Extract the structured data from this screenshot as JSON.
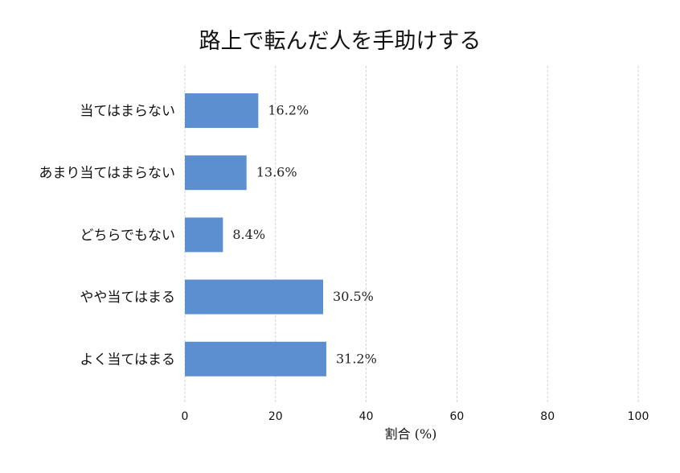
{
  "chart_data": {
    "type": "bar",
    "orientation": "horizontal",
    "title": "路上で転んだ人を手助けする",
    "xlabel": "割合 (%)",
    "ylabel": "",
    "categories": [
      "当てはまらない",
      "あまり当てはまらない",
      "どちらでもない",
      "やや当てはまる",
      "よく当てはまる"
    ],
    "values": [
      16.2,
      13.6,
      8.4,
      30.5,
      31.2
    ],
    "value_labels": [
      "16.2%",
      "13.6%",
      "8.4%",
      "30.5%",
      "31.2%"
    ],
    "xlim": [
      0,
      100
    ],
    "xticks": [
      0,
      20,
      40,
      60,
      80,
      100
    ],
    "xtick_labels": [
      "0",
      "20",
      "40",
      "60",
      "80",
      "100"
    ],
    "grid": "x-dashed",
    "bar_color": "#5b8fd0"
  }
}
